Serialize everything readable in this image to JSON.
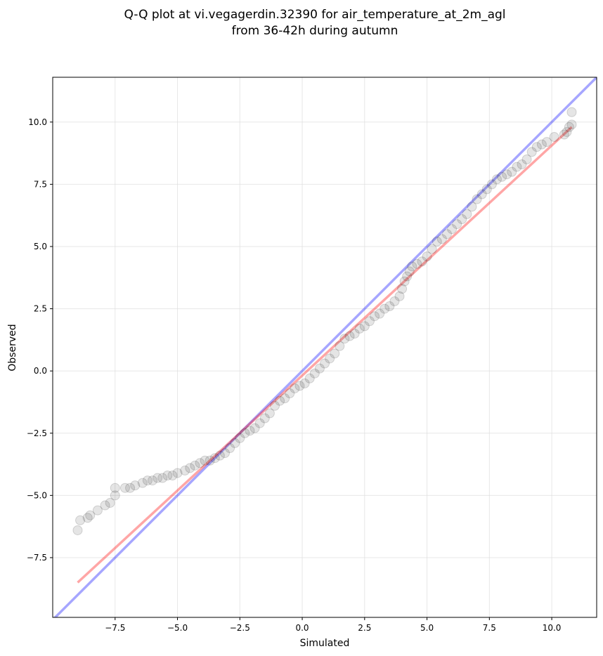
{
  "chart_data": {
    "type": "scatter",
    "title_line1": "Q-Q plot at vi.vegagerdin.32390 for air_temperature_at_2m_agl",
    "title_line2": "from 36-42h during autumn",
    "xlabel": "Simulated",
    "ylabel": "Observed",
    "xlim": [
      -10.0,
      11.8
    ],
    "ylim": [
      -9.9,
      11.8
    ],
    "xticks": [
      -7.5,
      -5.0,
      -2.5,
      0.0,
      2.5,
      5.0,
      7.5,
      10.0
    ],
    "yticks": [
      -7.5,
      -5.0,
      -2.5,
      0.0,
      2.5,
      5.0,
      7.5,
      10.0
    ],
    "xtick_labels": [
      "−7.5",
      "−5.0",
      "−2.5",
      "0.0",
      "2.5",
      "5.0",
      "7.5",
      "10.0"
    ],
    "ytick_labels": [
      "−7.5",
      "−5.0",
      "−2.5",
      "0.0",
      "2.5",
      "5.0",
      "7.5",
      "10.0"
    ],
    "grid": true,
    "colors": {
      "points": "#000000",
      "identity_line": "#0000ff",
      "fit_line": "#ff0000"
    },
    "identity_line": {
      "x": [
        -10.0,
        11.8
      ],
      "y": [
        -10.0,
        11.8
      ]
    },
    "fit_line": {
      "x": [
        -9.0,
        10.8
      ],
      "y": [
        -8.5,
        9.8
      ]
    },
    "points": [
      [
        -9.0,
        -6.4
      ],
      [
        -8.9,
        -6.0
      ],
      [
        -8.6,
        -5.9
      ],
      [
        -8.5,
        -5.8
      ],
      [
        -8.2,
        -5.6
      ],
      [
        -7.9,
        -5.4
      ],
      [
        -7.7,
        -5.3
      ],
      [
        -7.5,
        -5.0
      ],
      [
        -7.5,
        -4.7
      ],
      [
        -7.1,
        -4.7
      ],
      [
        -6.9,
        -4.7
      ],
      [
        -6.7,
        -4.6
      ],
      [
        -6.4,
        -4.5
      ],
      [
        -6.2,
        -4.4
      ],
      [
        -6.0,
        -4.4
      ],
      [
        -5.8,
        -4.3
      ],
      [
        -5.6,
        -4.3
      ],
      [
        -5.4,
        -4.2
      ],
      [
        -5.2,
        -4.2
      ],
      [
        -5.0,
        -4.1
      ],
      [
        -4.7,
        -4.0
      ],
      [
        -4.5,
        -3.9
      ],
      [
        -4.3,
        -3.8
      ],
      [
        -4.1,
        -3.7
      ],
      [
        -3.9,
        -3.6
      ],
      [
        -3.7,
        -3.6
      ],
      [
        -3.5,
        -3.5
      ],
      [
        -3.3,
        -3.4
      ],
      [
        -3.1,
        -3.3
      ],
      [
        -2.9,
        -3.1
      ],
      [
        -2.7,
        -2.9
      ],
      [
        -2.5,
        -2.7
      ],
      [
        -2.3,
        -2.5
      ],
      [
        -2.1,
        -2.4
      ],
      [
        -1.9,
        -2.3
      ],
      [
        -1.7,
        -2.1
      ],
      [
        -1.5,
        -1.9
      ],
      [
        -1.3,
        -1.7
      ],
      [
        -1.1,
        -1.4
      ],
      [
        -0.9,
        -1.2
      ],
      [
        -0.7,
        -1.1
      ],
      [
        -0.5,
        -0.9
      ],
      [
        -0.3,
        -0.7
      ],
      [
        -0.1,
        -0.6
      ],
      [
        0.1,
        -0.5
      ],
      [
        0.3,
        -0.3
      ],
      [
        0.5,
        -0.1
      ],
      [
        0.7,
        0.1
      ],
      [
        0.9,
        0.3
      ],
      [
        1.1,
        0.5
      ],
      [
        1.3,
        0.7
      ],
      [
        1.5,
        1.0
      ],
      [
        1.7,
        1.3
      ],
      [
        1.9,
        1.4
      ],
      [
        2.1,
        1.5
      ],
      [
        2.3,
        1.7
      ],
      [
        2.5,
        1.8
      ],
      [
        2.7,
        2.0
      ],
      [
        2.9,
        2.2
      ],
      [
        3.1,
        2.3
      ],
      [
        3.3,
        2.5
      ],
      [
        3.5,
        2.6
      ],
      [
        3.7,
        2.8
      ],
      [
        3.9,
        3.0
      ],
      [
        4.0,
        3.3
      ],
      [
        4.1,
        3.6
      ],
      [
        4.2,
        3.8
      ],
      [
        4.3,
        4.0
      ],
      [
        4.4,
        4.2
      ],
      [
        4.6,
        4.3
      ],
      [
        4.8,
        4.4
      ],
      [
        5.0,
        4.6
      ],
      [
        5.2,
        4.9
      ],
      [
        5.4,
        5.2
      ],
      [
        5.6,
        5.3
      ],
      [
        5.8,
        5.5
      ],
      [
        6.0,
        5.7
      ],
      [
        6.2,
        5.9
      ],
      [
        6.4,
        6.1
      ],
      [
        6.6,
        6.3
      ],
      [
        6.8,
        6.6
      ],
      [
        7.0,
        6.9
      ],
      [
        7.2,
        7.1
      ],
      [
        7.4,
        7.3
      ],
      [
        7.6,
        7.5
      ],
      [
        7.8,
        7.7
      ],
      [
        8.0,
        7.8
      ],
      [
        8.2,
        7.9
      ],
      [
        8.4,
        8.0
      ],
      [
        8.6,
        8.2
      ],
      [
        8.8,
        8.3
      ],
      [
        9.0,
        8.5
      ],
      [
        9.2,
        8.8
      ],
      [
        9.4,
        9.0
      ],
      [
        9.6,
        9.1
      ],
      [
        9.8,
        9.2
      ],
      [
        10.1,
        9.4
      ],
      [
        10.5,
        9.5
      ],
      [
        10.6,
        9.6
      ],
      [
        10.7,
        9.8
      ],
      [
        10.8,
        9.9
      ],
      [
        10.8,
        10.4
      ]
    ]
  }
}
